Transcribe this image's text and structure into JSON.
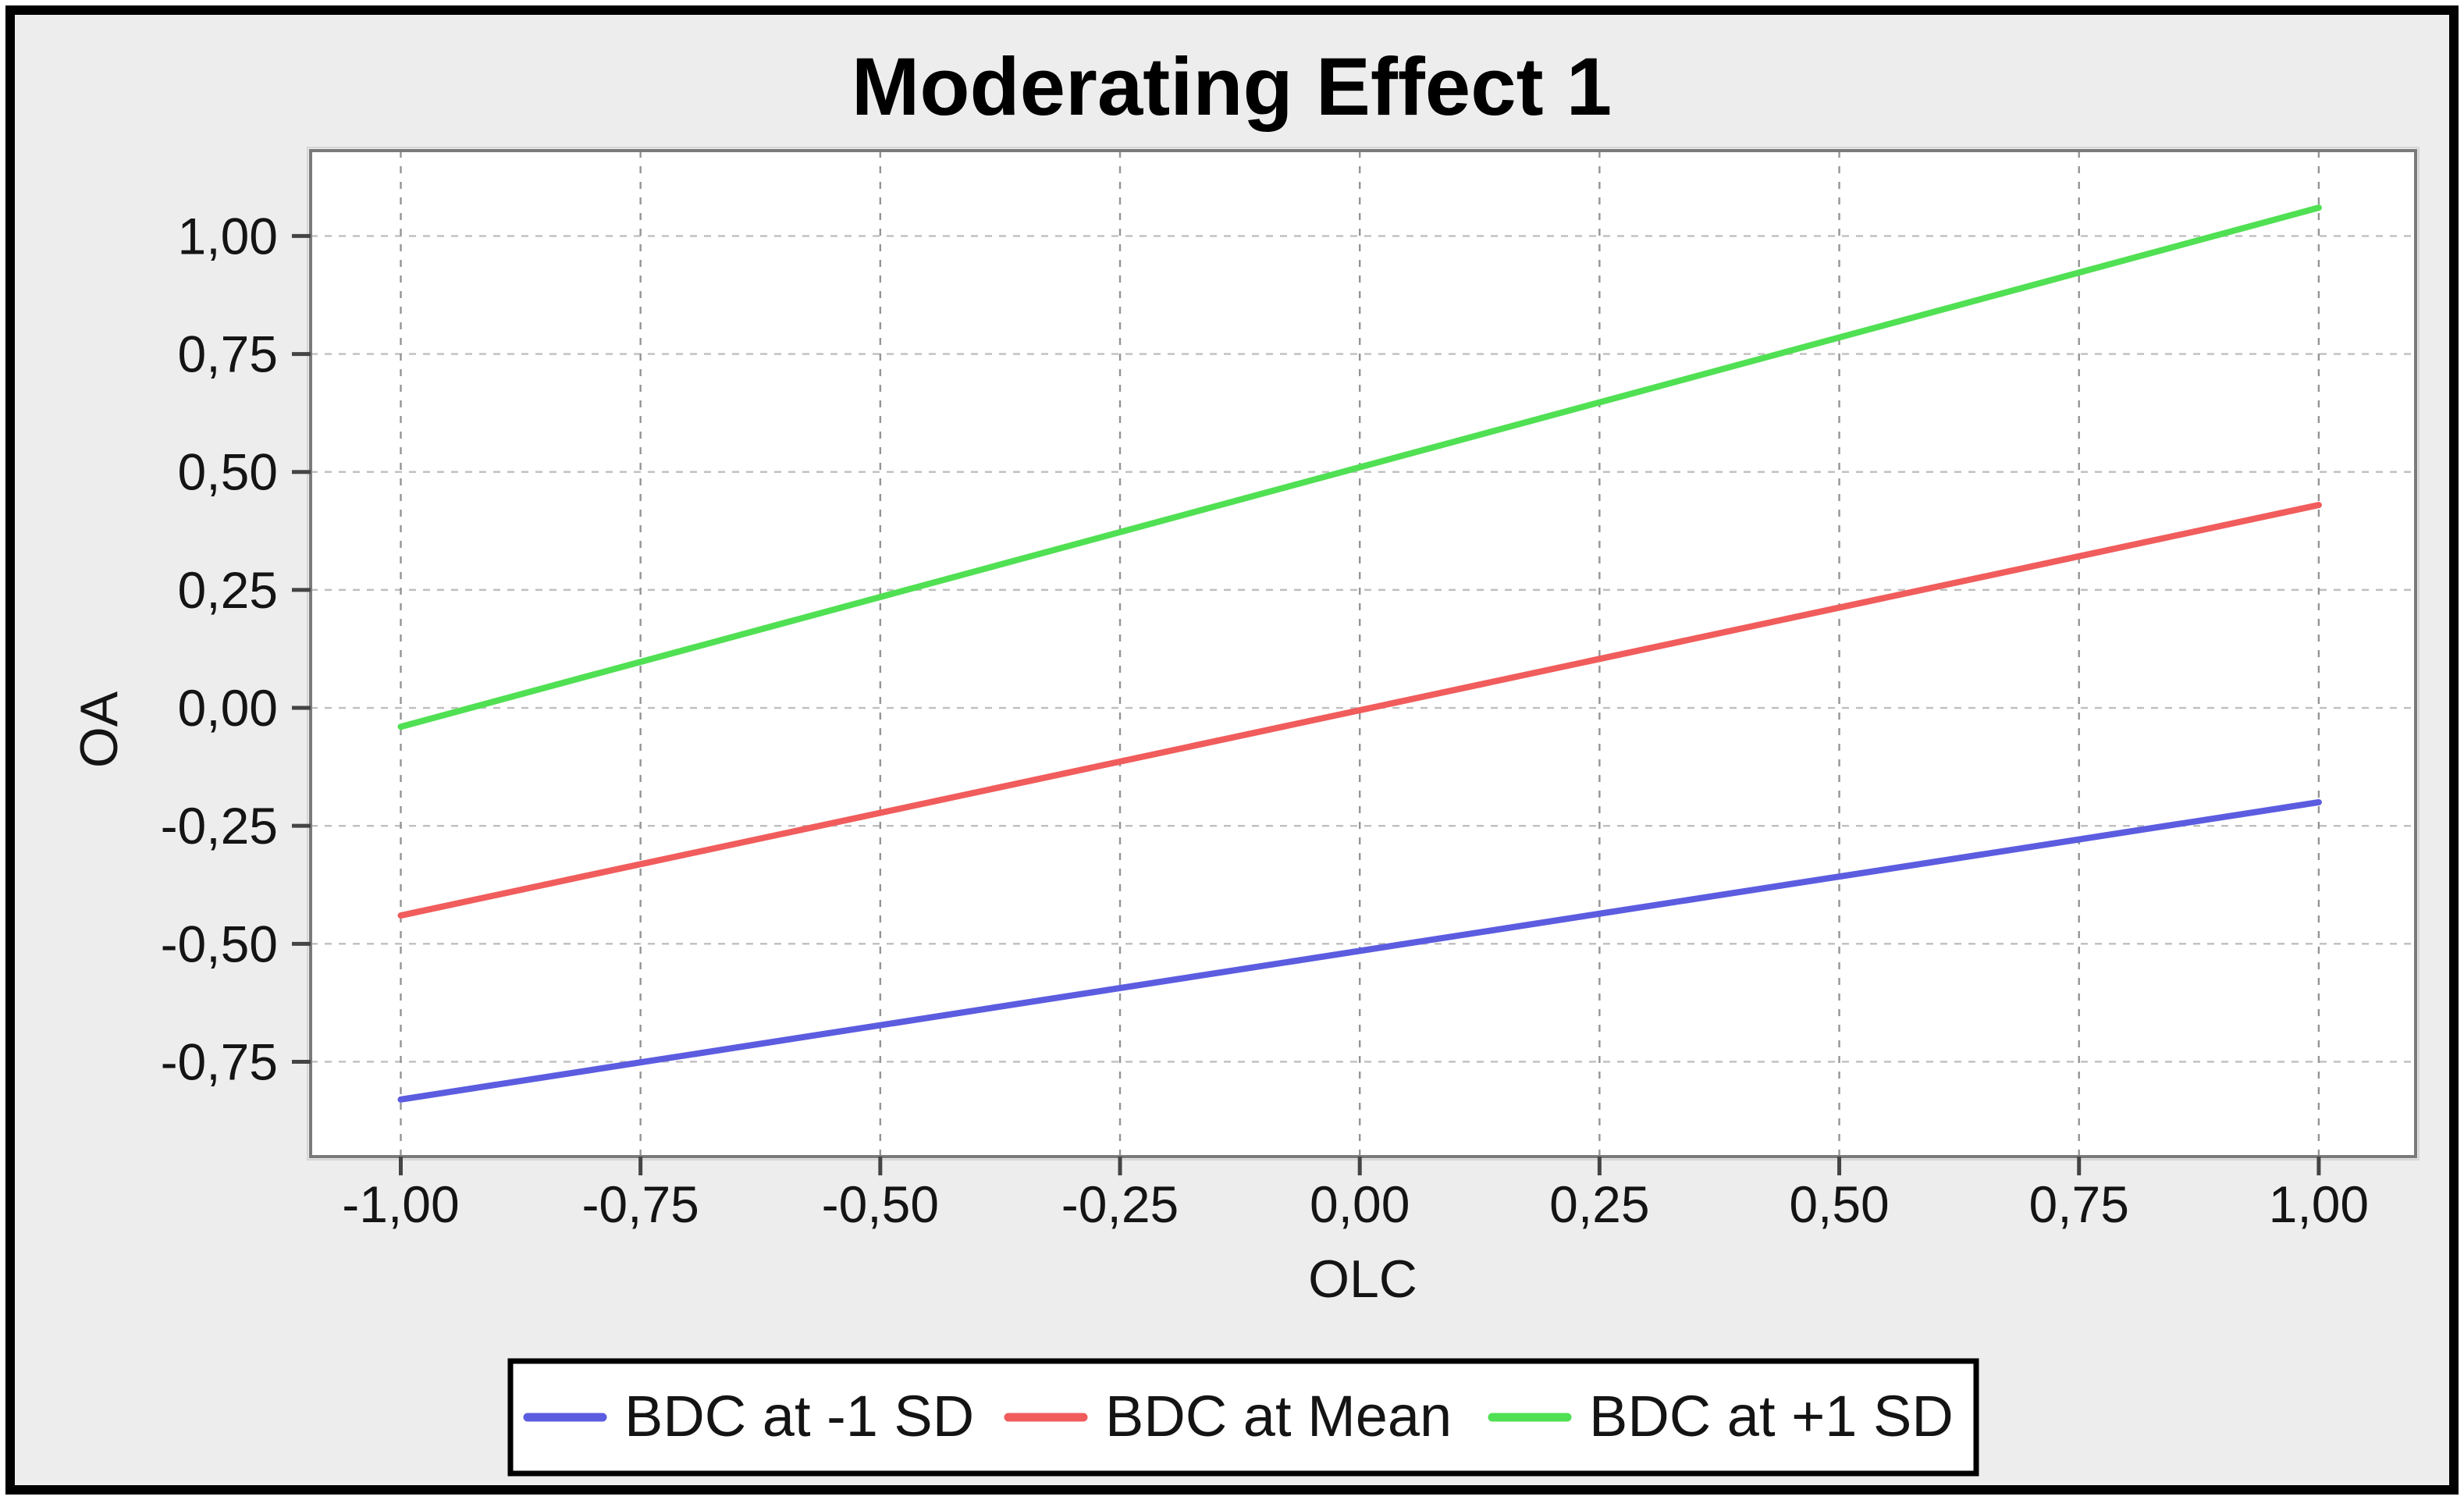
{
  "window": {
    "frame_color": "#000000",
    "background_color": "#ededed",
    "plot_background_color": "#ffffff",
    "plot_border_color": "#7a7a7a",
    "grid_color_horizontal": "#bfbfbf",
    "grid_color_vertical": "#949494",
    "tick_mark_color": "#444444"
  },
  "chart_data": {
    "type": "line",
    "title": "Moderating Effect 1",
    "xlabel": "OLC",
    "ylabel": "OA",
    "grid": true,
    "legend_position": "bottom",
    "xlim": [
      -1.094,
      1.101
    ],
    "ylim": [
      -0.951,
      1.181
    ],
    "x_ticks": [
      {
        "value": -1.0,
        "label": "-1,00"
      },
      {
        "value": -0.75,
        "label": "-0,75"
      },
      {
        "value": -0.5,
        "label": "-0,50"
      },
      {
        "value": -0.25,
        "label": "-0,25"
      },
      {
        "value": 0.0,
        "label": "0,00"
      },
      {
        "value": 0.25,
        "label": "0,25"
      },
      {
        "value": 0.5,
        "label": "0,50"
      },
      {
        "value": 0.75,
        "label": "0,75"
      },
      {
        "value": 1.0,
        "label": "1,00"
      }
    ],
    "y_ticks": [
      {
        "value": 1.0,
        "label": "1,00"
      },
      {
        "value": 0.75,
        "label": "0,75"
      },
      {
        "value": 0.5,
        "label": "0,50"
      },
      {
        "value": 0.25,
        "label": "0,25"
      },
      {
        "value": 0.0,
        "label": "0,00"
      },
      {
        "value": -0.25,
        "label": "-0,25"
      },
      {
        "value": -0.5,
        "label": "-0,50"
      },
      {
        "value": -0.75,
        "label": "-0,75"
      }
    ],
    "series": [
      {
        "name": "BDC at -1 SD",
        "color": "#5c5ce0",
        "x": [
          -1,
          1
        ],
        "y": [
          -0.83,
          -0.2
        ]
      },
      {
        "name": "BDC at Mean",
        "color": "#f15c5c",
        "x": [
          -1,
          1
        ],
        "y": [
          -0.44,
          0.43
        ]
      },
      {
        "name": "BDC at +1 SD",
        "color": "#50e053",
        "x": [
          -1,
          1
        ],
        "y": [
          -0.04,
          1.06
        ]
      }
    ]
  }
}
